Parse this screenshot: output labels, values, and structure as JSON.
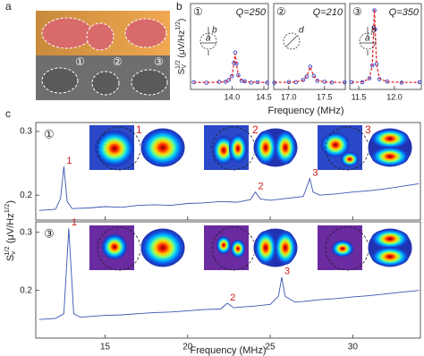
{
  "panel_labels": [
    "a",
    "b",
    "c"
  ],
  "photo": {
    "labels": [
      "①",
      "②",
      "③"
    ]
  },
  "chart_data": [
    {
      "type": "line",
      "sample": "①",
      "q_label": "Q=250",
      "inset_labels": [
        "b",
        "a"
      ],
      "y_label": [
        "S",
        "V",
        "1/2",
        " (μV/Hz",
        "1/2",
        ")"
      ],
      "x": [
        13.4,
        13.6,
        13.8,
        13.9,
        13.95,
        14.0,
        14.03,
        14.05,
        14.07,
        14.1,
        14.15,
        14.2,
        14.3,
        14.4,
        14.55
      ],
      "series": [
        {
          "color": "#2b3fd0",
          "marker": "circle",
          "values": [
            0.085,
            0.078,
            0.088,
            0.089,
            0.11,
            0.155,
            0.31,
            0.43,
            0.3,
            0.165,
            0.1,
            0.095,
            0.08,
            0.085,
            0.079
          ]
        },
        {
          "color": "#e0262a",
          "dash": true,
          "values": [
            0.081,
            0.081,
            0.084,
            0.092,
            0.105,
            0.161,
            0.306,
            0.42,
            0.306,
            0.161,
            0.105,
            0.092,
            0.084,
            0.082,
            0.081
          ]
        }
      ],
      "xlim": [
        13.35,
        14.57
      ],
      "ylim": [
        0,
        1
      ],
      "xticks": [
        {
          "value": 14,
          "label": "14.0"
        },
        14.5
      ]
    },
    {
      "type": "line",
      "sample": "②",
      "q_label": "Q=210",
      "inset_labels": [
        "d"
      ],
      "x_label": "Frequency (MHz)",
      "x": [
        16.8,
        17.0,
        17.1,
        17.2,
        17.25,
        17.3,
        17.35,
        17.4,
        17.5,
        17.6,
        17.78
      ],
      "series": [
        {
          "color": "#2b3fd0",
          "marker": "circle",
          "values": [
            0.078,
            0.086,
            0.084,
            0.11,
            0.15,
            0.265,
            0.158,
            0.1,
            0.09,
            0.08,
            0.083
          ]
        },
        {
          "color": "#e0262a",
          "dash": true,
          "values": [
            0.081,
            0.083,
            0.087,
            0.106,
            0.153,
            0.26,
            0.153,
            0.106,
            0.087,
            0.083,
            0.081
          ]
        }
      ],
      "xlim": [
        16.79,
        17.79
      ],
      "ylim": [
        0,
        1
      ],
      "xticks": [
        {
          "value": 17,
          "label": "17.0"
        },
        17.5
      ]
    },
    {
      "type": "line",
      "sample": "③",
      "q_label": "Q=350",
      "inset_labels": [
        "b",
        "a"
      ],
      "x": [
        11.4,
        11.55,
        11.65,
        11.69,
        11.71,
        11.72,
        11.73,
        11.75,
        11.79,
        11.9,
        12.1,
        12.35
      ],
      "series": [
        {
          "color": "#2b3fd0",
          "marker": "circle",
          "values": [
            0.085,
            0.084,
            0.13,
            0.28,
            0.72,
            0.92,
            0.7,
            0.295,
            0.12,
            0.092,
            0.079,
            0.084
          ]
        },
        {
          "color": "#e0262a",
          "dash": true,
          "values": [
            0.082,
            0.088,
            0.127,
            0.288,
            0.71,
            0.93,
            0.71,
            0.288,
            0.127,
            0.088,
            0.082,
            0.081
          ]
        }
      ],
      "xlim": [
        11.375,
        12.375
      ],
      "ylim": [
        0,
        1
      ],
      "xticks": [
        11.5,
        {
          "value": 12,
          "label": "12.0"
        }
      ]
    },
    {
      "type": "line",
      "sample": "①",
      "mode_labels": [
        "1",
        "2",
        "3"
      ],
      "y_label": [
        "S",
        "v",
        "1/2",
        " (μV/Hz",
        "1/2",
        ")"
      ],
      "x": [
        11,
        12,
        12.3,
        12.5,
        12.7,
        13,
        14,
        15,
        16,
        17,
        18,
        19,
        20,
        21,
        22,
        23,
        23.8,
        24.1,
        24.4,
        25,
        26,
        27,
        27.2,
        27.4,
        27.6,
        28,
        29,
        30,
        31,
        32,
        33,
        34
      ],
      "series": [
        {
          "color": "#3a55b0",
          "values": [
            0.176,
            0.178,
            0.195,
            0.245,
            0.19,
            0.179,
            0.18,
            0.182,
            0.181,
            0.184,
            0.185,
            0.184,
            0.187,
            0.188,
            0.19,
            0.189,
            0.193,
            0.205,
            0.194,
            0.192,
            0.195,
            0.198,
            0.212,
            0.226,
            0.205,
            0.2,
            0.202,
            0.205,
            0.207,
            0.21,
            0.214,
            0.218
          ]
        }
      ],
      "peak_labels": [
        {
          "label": "1",
          "x": 12.5,
          "y": 0.245
        },
        {
          "label": "2",
          "x": 24.1,
          "y": 0.205
        },
        {
          "label": "3",
          "x": 27.4,
          "y": 0.226
        }
      ],
      "xlim": [
        10.8,
        34.1
      ],
      "ylim": [
        0.161,
        0.314
      ],
      "xticks": [
        15,
        20,
        25,
        30
      ],
      "yticks": [
        0.2,
        0.3
      ]
    },
    {
      "type": "line",
      "sample": "③",
      "x_label": "Frequency (MHz)",
      "x": [
        11,
        12,
        12.5,
        12.8,
        13.1,
        13.5,
        14,
        15,
        16,
        17,
        18,
        19,
        20,
        21,
        22,
        22.4,
        22.8,
        23,
        24,
        25,
        25.5,
        25.7,
        25.9,
        26.5,
        27,
        28,
        29,
        30,
        31,
        32,
        33,
        34
      ],
      "series": [
        {
          "color": "#3a55b0",
          "values": [
            0.15,
            0.152,
            0.16,
            0.307,
            0.16,
            0.154,
            0.155,
            0.157,
            0.158,
            0.16,
            0.162,
            0.163,
            0.165,
            0.167,
            0.168,
            0.178,
            0.17,
            0.171,
            0.173,
            0.176,
            0.19,
            0.223,
            0.19,
            0.18,
            0.181,
            0.184,
            0.186,
            0.189,
            0.191,
            0.194,
            0.197,
            0.2
          ]
        }
      ],
      "peak_labels": [
        {
          "label": "1",
          "x": 12.8,
          "y": 0.307
        },
        {
          "label": "2",
          "x": 22.4,
          "y": 0.178
        },
        {
          "label": "3",
          "x": 25.7,
          "y": 0.223
        }
      ],
      "xlim": [
        10.8,
        34.1
      ],
      "ylim": [
        0.118,
        0.318
      ],
      "xticks": [
        15,
        20,
        25,
        30
      ],
      "yticks": [
        0.2,
        0.3
      ]
    }
  ]
}
